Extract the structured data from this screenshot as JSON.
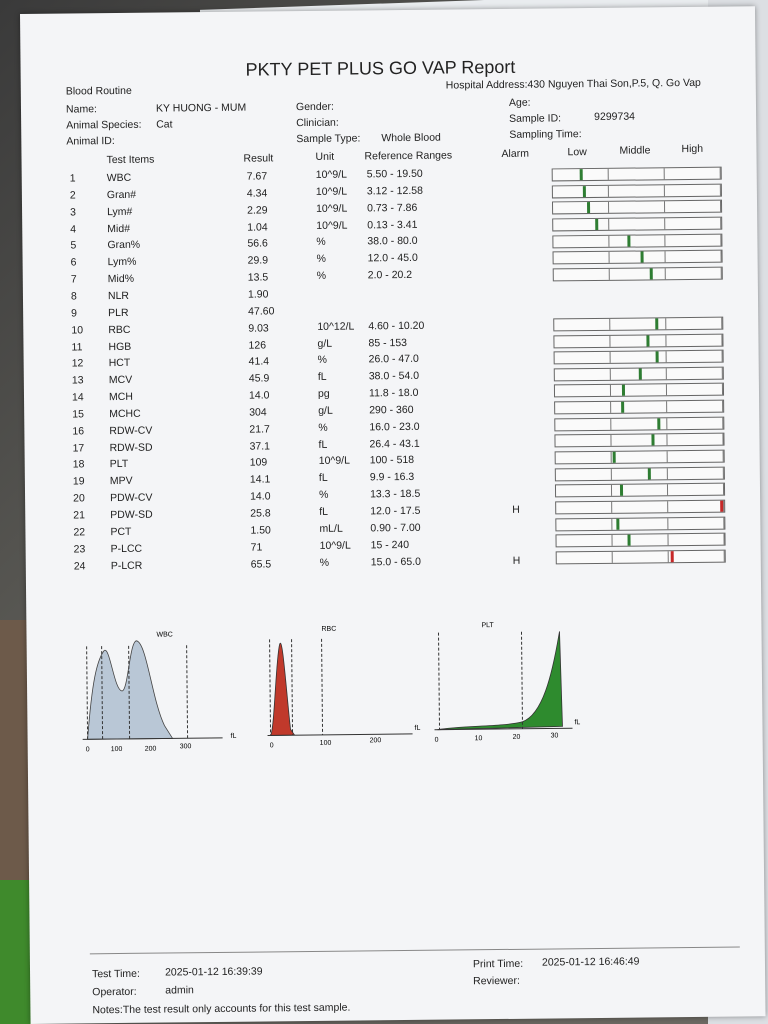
{
  "report": {
    "title": "PKTY PET PLUS GO VAP Report",
    "section": "Blood Routine",
    "hospital_address": "Hospital Address:430 Nguyen Thai Son,P.5, Q. Go Vap",
    "name_label": "Name:",
    "name_value": "KY HUONG - MUM",
    "gender_label": "Gender:",
    "age_label": "Age:",
    "species_label": "Animal Species:",
    "species_value": "Cat",
    "clinician_label": "Clinician:",
    "sample_id_label": "Sample ID:",
    "sample_id_value": "9299734",
    "animal_id_label": "Animal ID:",
    "sample_type_label": "Sample Type:",
    "sample_type_value": "Whole Blood",
    "sampling_time_label": "Sampling Time:"
  },
  "columns": {
    "test_items": "Test Items",
    "result": "Result",
    "unit": "Unit",
    "reference": "Reference Ranges",
    "alarm": "Alarm",
    "low": "Low",
    "middle": "Middle",
    "high": "High"
  },
  "rows": [
    {
      "n": "1",
      "item": "WBC",
      "result": "7.67",
      "unit": "10^9/L",
      "ref": "5.50 - 19.50",
      "alarm": "",
      "level": 0.16
    },
    {
      "n": "2",
      "item": "Gran#",
      "result": "4.34",
      "unit": "10^9/L",
      "ref": "3.12 - 12.58",
      "alarm": "",
      "level": 0.18
    },
    {
      "n": "3",
      "item": "Lym#",
      "result": "2.29",
      "unit": "10^9/L",
      "ref": "0.73 - 7.86",
      "alarm": "",
      "level": 0.2
    },
    {
      "n": "4",
      "item": "Mid#",
      "result": "1.04",
      "unit": "10^9/L",
      "ref": "0.13 - 3.41",
      "alarm": "",
      "level": 0.25
    },
    {
      "n": "5",
      "item": "Gran%",
      "result": "56.6",
      "unit": "%",
      "ref": "38.0 - 80.0",
      "alarm": "",
      "level": 0.44
    },
    {
      "n": "6",
      "item": "Lym%",
      "result": "29.9",
      "unit": "%",
      "ref": "12.0 - 45.0",
      "alarm": "",
      "level": 0.52
    },
    {
      "n": "7",
      "item": "Mid%",
      "result": "13.5",
      "unit": "%",
      "ref": "2.0 - 20.2",
      "alarm": "",
      "level": 0.57
    },
    {
      "n": "8",
      "item": "NLR",
      "result": "1.90",
      "unit": "",
      "ref": "",
      "alarm": "",
      "level": null
    },
    {
      "n": "9",
      "item": "PLR",
      "result": "47.60",
      "unit": "",
      "ref": "",
      "alarm": "",
      "level": null
    },
    {
      "n": "10",
      "item": "RBC",
      "result": "9.03",
      "unit": "10^12/L",
      "ref": "4.60 - 10.20",
      "alarm": "",
      "level": 0.6
    },
    {
      "n": "11",
      "item": "HGB",
      "result": "126",
      "unit": "g/L",
      "ref": "85 - 153",
      "alarm": "",
      "level": 0.55
    },
    {
      "n": "12",
      "item": "HCT",
      "result": "41.4",
      "unit": "%",
      "ref": "26.0 - 47.0",
      "alarm": "",
      "level": 0.6
    },
    {
      "n": "13",
      "item": "MCV",
      "result": "45.9",
      "unit": "fL",
      "ref": "38.0 - 54.0",
      "alarm": "",
      "level": 0.5
    },
    {
      "n": "14",
      "item": "MCH",
      "result": "14.0",
      "unit": "pg",
      "ref": "11.8 - 18.0",
      "alarm": "",
      "level": 0.4
    },
    {
      "n": "15",
      "item": "MCHC",
      "result": "304",
      "unit": "g/L",
      "ref": "290 - 360",
      "alarm": "",
      "level": 0.39
    },
    {
      "n": "16",
      "item": "RDW-CV",
      "result": "21.7",
      "unit": "%",
      "ref": "16.0 - 23.0",
      "alarm": "",
      "level": 0.61
    },
    {
      "n": "17",
      "item": "RDW-SD",
      "result": "37.1",
      "unit": "fL",
      "ref": "26.4 - 43.1",
      "alarm": "",
      "level": 0.57
    },
    {
      "n": "18",
      "item": "PLT",
      "result": "109",
      "unit": "10^9/L",
      "ref": "100 - 518",
      "alarm": "",
      "level": 0.34
    },
    {
      "n": "19",
      "item": "MPV",
      "result": "14.1",
      "unit": "fL",
      "ref": "9.9 - 16.3",
      "alarm": "",
      "level": 0.55
    },
    {
      "n": "20",
      "item": "PDW-CV",
      "result": "14.0",
      "unit": "%",
      "ref": "13.3 - 18.5",
      "alarm": "",
      "level": 0.38
    },
    {
      "n": "21",
      "item": "PDW-SD",
      "result": "25.8",
      "unit": "fL",
      "ref": "12.0 - 17.5",
      "alarm": "H",
      "level": 0.99
    },
    {
      "n": "22",
      "item": "PCT",
      "result": "1.50",
      "unit": "mL/L",
      "ref": "0.90 - 7.00",
      "alarm": "",
      "level": 0.36
    },
    {
      "n": "23",
      "item": "P-LCC",
      "result": "71",
      "unit": "10^9/L",
      "ref": "15 - 240",
      "alarm": "",
      "level": 0.42
    },
    {
      "n": "24",
      "item": "P-LCR",
      "result": "65.5",
      "unit": "%",
      "ref": "15.0 - 65.0",
      "alarm": "H",
      "level": 0.68
    }
  ],
  "histograms": {
    "wbc": {
      "label": "WBC",
      "ticks": [
        "0",
        "100",
        "200",
        "300"
      ],
      "unit": "fL"
    },
    "rbc": {
      "label": "RBC",
      "ticks": [
        "0",
        "100",
        "200"
      ],
      "unit": "fL"
    },
    "plt": {
      "label": "PLT",
      "ticks": [
        "0",
        "10",
        "20",
        "30"
      ],
      "unit": "fL"
    },
    "colors": {
      "wbc": "#b9c7d6",
      "rbc": "#c0392b",
      "plt": "#2e8b2e"
    }
  },
  "footer": {
    "test_time_label": "Test Time:",
    "test_time_value": "2025-01-12 16:39:39",
    "operator_label": "Operator:",
    "operator_value": "admin",
    "print_time_label": "Print Time:",
    "print_time_value": "2025-01-12 16:46:49",
    "reviewer_label": "Reviewer:",
    "notes": "Notes:The test result only accounts for this test sample."
  }
}
